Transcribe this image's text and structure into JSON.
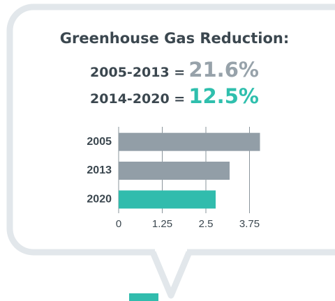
{
  "header": {
    "title": "Greenhouse Gas Reduction:",
    "lines": [
      {
        "label": "2005-2013 =",
        "value": "21.6%",
        "color": "#97a2aa"
      },
      {
        "label": "2014-2020 =",
        "value": "12.5%",
        "color": "#2fbfad"
      }
    ]
  },
  "chart_data": {
    "type": "hbar",
    "categories": [
      "2005",
      "2013",
      "2020"
    ],
    "values": [
      4.05,
      3.18,
      2.78
    ],
    "colors": [
      "#929ea7",
      "#929ea7",
      "#31bcad"
    ],
    "xlim": [
      0,
      4
    ],
    "xticks": [
      0,
      1.25,
      2.5,
      3.75
    ],
    "grid": true
  }
}
